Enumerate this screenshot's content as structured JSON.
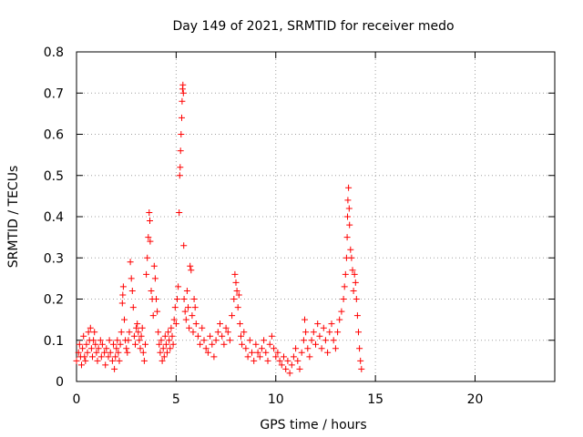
{
  "chart_data": {
    "type": "scatter",
    "title": "Day 149 of 2021, SRMTID for receiver medo",
    "xlabel": "GPS time / hours",
    "ylabel": "SRMTID / TECUs",
    "xlim": [
      0,
      24
    ],
    "ylim": [
      0,
      0.8
    ],
    "xticks": [
      0,
      5,
      10,
      15,
      20
    ],
    "yticks": [
      0,
      0.1,
      0.2,
      0.3,
      0.4,
      0.5,
      0.6,
      0.7,
      0.8
    ],
    "xtick_labels": [
      "0",
      "5",
      "10",
      "15",
      "20"
    ],
    "ytick_labels": [
      "0",
      "0.1",
      "0.2",
      "0.3",
      "0.4",
      "0.5",
      "0.6",
      "0.7",
      "0.8"
    ],
    "grid": true,
    "marker": "plus",
    "color": "#ff0000",
    "series": [
      {
        "name": "SRMTID",
        "points": [
          [
            0.0,
            0.05
          ],
          [
            0.1,
            0.07
          ],
          [
            0.15,
            0.09
          ],
          [
            0.2,
            0.06
          ],
          [
            0.25,
            0.04
          ],
          [
            0.3,
            0.08
          ],
          [
            0.35,
            0.11
          ],
          [
            0.4,
            0.06
          ],
          [
            0.45,
            0.05
          ],
          [
            0.5,
            0.09
          ],
          [
            0.55,
            0.07
          ],
          [
            0.6,
            0.12
          ],
          [
            0.65,
            0.1
          ],
          [
            0.7,
            0.13
          ],
          [
            0.75,
            0.08
          ],
          [
            0.8,
            0.06
          ],
          [
            0.85,
            0.1
          ],
          [
            0.9,
            0.12
          ],
          [
            0.95,
            0.09
          ],
          [
            1.0,
            0.07
          ],
          [
            1.05,
            0.05
          ],
          [
            1.1,
            0.08
          ],
          [
            1.2,
            0.1
          ],
          [
            1.25,
            0.06
          ],
          [
            1.3,
            0.09
          ],
          [
            1.4,
            0.07
          ],
          [
            1.45,
            0.04
          ],
          [
            1.5,
            0.08
          ],
          [
            1.6,
            0.06
          ],
          [
            1.65,
            0.1
          ],
          [
            1.7,
            0.07
          ],
          [
            1.8,
            0.05
          ],
          [
            1.85,
            0.09
          ],
          [
            1.9,
            0.03
          ],
          [
            1.95,
            0.06
          ],
          [
            2.0,
            0.08
          ],
          [
            2.05,
            0.1
          ],
          [
            2.1,
            0.07
          ],
          [
            2.15,
            0.05
          ],
          [
            2.2,
            0.09
          ],
          [
            2.25,
            0.12
          ],
          [
            2.3,
            0.19
          ],
          [
            2.32,
            0.21
          ],
          [
            2.35,
            0.23
          ],
          [
            2.4,
            0.15
          ],
          [
            2.45,
            0.1
          ],
          [
            2.5,
            0.08
          ],
          [
            2.55,
            0.07
          ],
          [
            2.6,
            0.1
          ],
          [
            2.65,
            0.12
          ],
          [
            2.7,
            0.29
          ],
          [
            2.75,
            0.25
          ],
          [
            2.8,
            0.22
          ],
          [
            2.85,
            0.18
          ],
          [
            2.9,
            0.11
          ],
          [
            2.95,
            0.09
          ],
          [
            3.0,
            0.13
          ],
          [
            3.05,
            0.14
          ],
          [
            3.1,
            0.12
          ],
          [
            3.15,
            0.1
          ],
          [
            3.2,
            0.08
          ],
          [
            3.25,
            0.11
          ],
          [
            3.3,
            0.13
          ],
          [
            3.35,
            0.07
          ],
          [
            3.4,
            0.05
          ],
          [
            3.45,
            0.09
          ],
          [
            3.5,
            0.26
          ],
          [
            3.55,
            0.3
          ],
          [
            3.6,
            0.35
          ],
          [
            3.65,
            0.41
          ],
          [
            3.68,
            0.39
          ],
          [
            3.7,
            0.34
          ],
          [
            3.75,
            0.22
          ],
          [
            3.8,
            0.2
          ],
          [
            3.85,
            0.16
          ],
          [
            3.9,
            0.28
          ],
          [
            3.95,
            0.25
          ],
          [
            4.0,
            0.2
          ],
          [
            4.05,
            0.17
          ],
          [
            4.1,
            0.12
          ],
          [
            4.15,
            0.09
          ],
          [
            4.2,
            0.07
          ],
          [
            4.25,
            0.1
          ],
          [
            4.3,
            0.05
          ],
          [
            4.35,
            0.08
          ],
          [
            4.4,
            0.06
          ],
          [
            4.45,
            0.11
          ],
          [
            4.5,
            0.09
          ],
          [
            4.55,
            0.07
          ],
          [
            4.6,
            0.12
          ],
          [
            4.65,
            0.1
          ],
          [
            4.7,
            0.08
          ],
          [
            4.75,
            0.13
          ],
          [
            4.8,
            0.11
          ],
          [
            4.85,
            0.09
          ],
          [
            4.9,
            0.15
          ],
          [
            4.95,
            0.18
          ],
          [
            5.0,
            0.14
          ],
          [
            5.05,
            0.2
          ],
          [
            5.1,
            0.23
          ],
          [
            5.15,
            0.41
          ],
          [
            5.18,
            0.5
          ],
          [
            5.2,
            0.52
          ],
          [
            5.22,
            0.56
          ],
          [
            5.25,
            0.6
          ],
          [
            5.28,
            0.64
          ],
          [
            5.3,
            0.68
          ],
          [
            5.32,
            0.71
          ],
          [
            5.34,
            0.72
          ],
          [
            5.36,
            0.7
          ],
          [
            5.38,
            0.33
          ],
          [
            5.4,
            0.2
          ],
          [
            5.45,
            0.17
          ],
          [
            5.5,
            0.15
          ],
          [
            5.55,
            0.22
          ],
          [
            5.6,
            0.18
          ],
          [
            5.65,
            0.13
          ],
          [
            5.7,
            0.28
          ],
          [
            5.75,
            0.27
          ],
          [
            5.8,
            0.16
          ],
          [
            5.85,
            0.12
          ],
          [
            5.9,
            0.2
          ],
          [
            5.95,
            0.18
          ],
          [
            6.0,
            0.14
          ],
          [
            6.1,
            0.11
          ],
          [
            6.2,
            0.09
          ],
          [
            6.3,
            0.13
          ],
          [
            6.4,
            0.1
          ],
          [
            6.5,
            0.08
          ],
          [
            6.6,
            0.07
          ],
          [
            6.7,
            0.11
          ],
          [
            6.8,
            0.09
          ],
          [
            6.9,
            0.06
          ],
          [
            7.0,
            0.1
          ],
          [
            7.1,
            0.12
          ],
          [
            7.2,
            0.14
          ],
          [
            7.3,
            0.11
          ],
          [
            7.4,
            0.09
          ],
          [
            7.5,
            0.13
          ],
          [
            7.6,
            0.12
          ],
          [
            7.7,
            0.1
          ],
          [
            7.8,
            0.16
          ],
          [
            7.9,
            0.2
          ],
          [
            7.95,
            0.26
          ],
          [
            8.0,
            0.24
          ],
          [
            8.05,
            0.22
          ],
          [
            8.1,
            0.18
          ],
          [
            8.15,
            0.21
          ],
          [
            8.2,
            0.14
          ],
          [
            8.25,
            0.11
          ],
          [
            8.3,
            0.09
          ],
          [
            8.4,
            0.12
          ],
          [
            8.5,
            0.08
          ],
          [
            8.6,
            0.06
          ],
          [
            8.7,
            0.1
          ],
          [
            8.8,
            0.07
          ],
          [
            8.9,
            0.05
          ],
          [
            9.0,
            0.09
          ],
          [
            9.1,
            0.07
          ],
          [
            9.2,
            0.06
          ],
          [
            9.3,
            0.08
          ],
          [
            9.4,
            0.1
          ],
          [
            9.5,
            0.07
          ],
          [
            9.6,
            0.05
          ],
          [
            9.7,
            0.09
          ],
          [
            9.8,
            0.11
          ],
          [
            9.9,
            0.08
          ],
          [
            10.0,
            0.06
          ],
          [
            10.1,
            0.07
          ],
          [
            10.2,
            0.05
          ],
          [
            10.3,
            0.04
          ],
          [
            10.4,
            0.06
          ],
          [
            10.5,
            0.03
          ],
          [
            10.6,
            0.05
          ],
          [
            10.7,
            0.02
          ],
          [
            10.8,
            0.04
          ],
          [
            10.9,
            0.06
          ],
          [
            11.0,
            0.08
          ],
          [
            11.1,
            0.05
          ],
          [
            11.2,
            0.03
          ],
          [
            11.3,
            0.07
          ],
          [
            11.4,
            0.1
          ],
          [
            11.45,
            0.15
          ],
          [
            11.5,
            0.12
          ],
          [
            11.6,
            0.08
          ],
          [
            11.7,
            0.06
          ],
          [
            11.8,
            0.1
          ],
          [
            11.9,
            0.12
          ],
          [
            12.0,
            0.09
          ],
          [
            12.1,
            0.14
          ],
          [
            12.2,
            0.11
          ],
          [
            12.3,
            0.08
          ],
          [
            12.4,
            0.13
          ],
          [
            12.5,
            0.1
          ],
          [
            12.6,
            0.07
          ],
          [
            12.7,
            0.12
          ],
          [
            12.8,
            0.14
          ],
          [
            12.9,
            0.1
          ],
          [
            13.0,
            0.08
          ],
          [
            13.1,
            0.12
          ],
          [
            13.2,
            0.15
          ],
          [
            13.3,
            0.17
          ],
          [
            13.4,
            0.2
          ],
          [
            13.45,
            0.23
          ],
          [
            13.5,
            0.26
          ],
          [
            13.55,
            0.3
          ],
          [
            13.58,
            0.35
          ],
          [
            13.6,
            0.4
          ],
          [
            13.62,
            0.44
          ],
          [
            13.65,
            0.47
          ],
          [
            13.68,
            0.42
          ],
          [
            13.7,
            0.38
          ],
          [
            13.75,
            0.32
          ],
          [
            13.8,
            0.3
          ],
          [
            13.85,
            0.27
          ],
          [
            13.9,
            0.22
          ],
          [
            13.95,
            0.26
          ],
          [
            14.0,
            0.24
          ],
          [
            14.05,
            0.2
          ],
          [
            14.1,
            0.16
          ],
          [
            14.15,
            0.12
          ],
          [
            14.2,
            0.08
          ],
          [
            14.25,
            0.05
          ],
          [
            14.3,
            0.03
          ]
        ]
      }
    ]
  }
}
